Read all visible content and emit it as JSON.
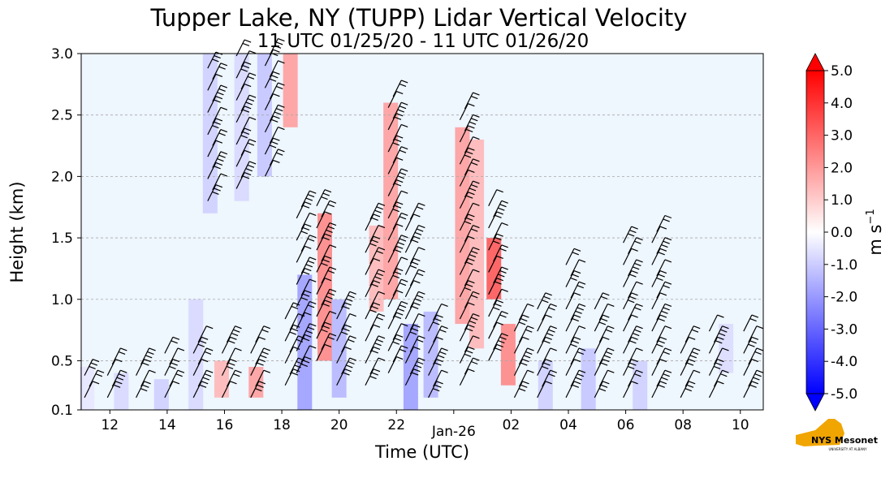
{
  "chart_data": {
    "type": "heatmap",
    "title": "Tupper Lake, NY (TUPP) Lidar Vertical Velocity",
    "subtitle": "11 UTC 01/25/20 - 11 UTC 01/26/20",
    "xlabel": "Time (UTC)",
    "ylabel": "Height (km)",
    "x_range_hours_since_00utc_jan25": [
      11,
      34.8
    ],
    "ylim": [
      0.1,
      3.0
    ],
    "x_tick_labels": [
      "12",
      "14",
      "16",
      "18",
      "20",
      "22",
      "Jan-26",
      "02",
      "04",
      "06",
      "08",
      "10"
    ],
    "x_tick_hours": [
      12,
      14,
      16,
      18,
      20,
      22,
      24,
      26,
      28,
      30,
      32,
      34
    ],
    "y_ticks": [
      "0.1",
      "0.5",
      "1.0",
      "1.5",
      "2.0",
      "2.5",
      "3.0"
    ],
    "y_tick_values": [
      0.1,
      0.5,
      1.0,
      1.5,
      2.0,
      2.5,
      3.0
    ],
    "grid": "horizontal dashed",
    "colorbar": {
      "label": "m s",
      "label_exponent": "−1",
      "min": -5.0,
      "max": 5.0,
      "tick_labels": [
        "5.0",
        "4.0",
        "3.0",
        "2.0",
        "1.0",
        "0.0",
        "-1.0",
        "-2.0",
        "-3.0",
        "-4.0",
        "-5.0"
      ],
      "tick_values": [
        5,
        4,
        3,
        2,
        1,
        0,
        -1,
        -2,
        -3,
        -4,
        -5
      ],
      "extend": "both",
      "colormap": "bwr"
    },
    "velocity_columns": [
      {
        "t": 11.2,
        "bottom": 0.1,
        "top": 0.45,
        "v": -0.5
      },
      {
        "t": 12.4,
        "bottom": 0.1,
        "top": 0.4,
        "v": -0.8
      },
      {
        "t": 13.8,
        "bottom": 0.1,
        "top": 0.35,
        "v": -1.0
      },
      {
        "t": 15.0,
        "bottom": 0.1,
        "top": 1.0,
        "v": -0.8
      },
      {
        "t": 15.5,
        "bottom": 1.7,
        "top": 3.0,
        "v": -1.0
      },
      {
        "t": 15.9,
        "bottom": 0.2,
        "top": 0.5,
        "v": 1.5
      },
      {
        "t": 16.6,
        "bottom": 1.8,
        "top": 3.0,
        "v": -0.8
      },
      {
        "t": 17.1,
        "bottom": 0.2,
        "top": 0.45,
        "v": 2.0
      },
      {
        "t": 17.4,
        "bottom": 2.0,
        "top": 3.0,
        "v": -1.2
      },
      {
        "t": 18.3,
        "bottom": 2.4,
        "top": 3.0,
        "v": 2.0
      },
      {
        "t": 18.8,
        "bottom": 0.1,
        "top": 1.2,
        "v": -2.0
      },
      {
        "t": 19.5,
        "bottom": 0.5,
        "top": 1.7,
        "v": 2.5
      },
      {
        "t": 20.0,
        "bottom": 0.2,
        "top": 1.0,
        "v": -1.5
      },
      {
        "t": 21.3,
        "bottom": 0.9,
        "top": 1.6,
        "v": 1.5
      },
      {
        "t": 21.8,
        "bottom": 1.0,
        "top": 2.6,
        "v": 2.0
      },
      {
        "t": 22.5,
        "bottom": 0.1,
        "top": 0.8,
        "v": -2.0
      },
      {
        "t": 23.2,
        "bottom": 0.2,
        "top": 0.9,
        "v": -1.5
      },
      {
        "t": 24.3,
        "bottom": 0.8,
        "top": 2.4,
        "v": 2.0
      },
      {
        "t": 24.8,
        "bottom": 0.6,
        "top": 2.3,
        "v": 1.5
      },
      {
        "t": 25.4,
        "bottom": 1.0,
        "top": 1.5,
        "v": 3.5
      },
      {
        "t": 25.9,
        "bottom": 0.3,
        "top": 0.8,
        "v": 2.5
      },
      {
        "t": 27.2,
        "bottom": 0.1,
        "top": 0.5,
        "v": -1.0
      },
      {
        "t": 28.7,
        "bottom": 0.1,
        "top": 0.6,
        "v": -1.2
      },
      {
        "t": 30.5,
        "bottom": 0.1,
        "top": 0.5,
        "v": -1.0
      },
      {
        "t": 33.5,
        "bottom": 0.4,
        "top": 0.8,
        "v": -0.7
      }
    ],
    "wind_barb_columns": [
      {
        "t": 11.2,
        "bottom": 0.2,
        "top": 0.45
      },
      {
        "t": 12.0,
        "bottom": 0.2,
        "top": 0.5
      },
      {
        "t": 13.0,
        "bottom": 0.2,
        "top": 0.55
      },
      {
        "t": 14.0,
        "bottom": 0.2,
        "top": 0.6
      },
      {
        "t": 15.0,
        "bottom": 0.2,
        "top": 0.65
      },
      {
        "t": 15.5,
        "bottom": 1.8,
        "top": 2.9
      },
      {
        "t": 16.0,
        "bottom": 0.2,
        "top": 0.7
      },
      {
        "t": 16.5,
        "bottom": 1.9,
        "top": 3.0
      },
      {
        "t": 17.0,
        "bottom": 0.2,
        "top": 0.7
      },
      {
        "t": 17.5,
        "bottom": 2.0,
        "top": 3.0
      },
      {
        "t": 18.2,
        "bottom": 0.3,
        "top": 0.9
      },
      {
        "t": 18.6,
        "bottom": 0.4,
        "top": 1.8
      },
      {
        "t": 19.3,
        "bottom": 0.5,
        "top": 1.8
      },
      {
        "t": 20.0,
        "bottom": 0.3,
        "top": 1.0
      },
      {
        "t": 21.0,
        "bottom": 0.3,
        "top": 1.7
      },
      {
        "t": 21.8,
        "bottom": 0.4,
        "top": 2.7
      },
      {
        "t": 22.4,
        "bottom": 0.3,
        "top": 1.7
      },
      {
        "t": 23.2,
        "bottom": 0.2,
        "top": 0.9
      },
      {
        "t": 24.3,
        "bottom": 0.3,
        "top": 2.6
      },
      {
        "t": 25.3,
        "bottom": 0.5,
        "top": 1.8
      },
      {
        "t": 26.2,
        "bottom": 0.2,
        "top": 0.9
      },
      {
        "t": 27.0,
        "bottom": 0.2,
        "top": 1.0
      },
      {
        "t": 28.0,
        "bottom": 0.2,
        "top": 1.3
      },
      {
        "t": 29.0,
        "bottom": 0.2,
        "top": 1.0
      },
      {
        "t": 30.0,
        "bottom": 0.2,
        "top": 1.5
      },
      {
        "t": 31.0,
        "bottom": 0.2,
        "top": 1.6
      },
      {
        "t": 32.0,
        "bottom": 0.2,
        "top": 0.7
      },
      {
        "t": 33.0,
        "bottom": 0.2,
        "top": 0.75
      },
      {
        "t": 34.2,
        "bottom": 0.2,
        "top": 0.8
      }
    ]
  },
  "logo": {
    "text_main": "NYS Mesonet",
    "text_sub": "UNIVERSITY AT ALBANY",
    "color_state": "#f0a500",
    "color_text": "#4b2e83"
  },
  "colors": {
    "background_field": "#eef6fe",
    "positive": "#ff0000",
    "negative": "#0000ff",
    "grid": "#a9a9a9"
  }
}
